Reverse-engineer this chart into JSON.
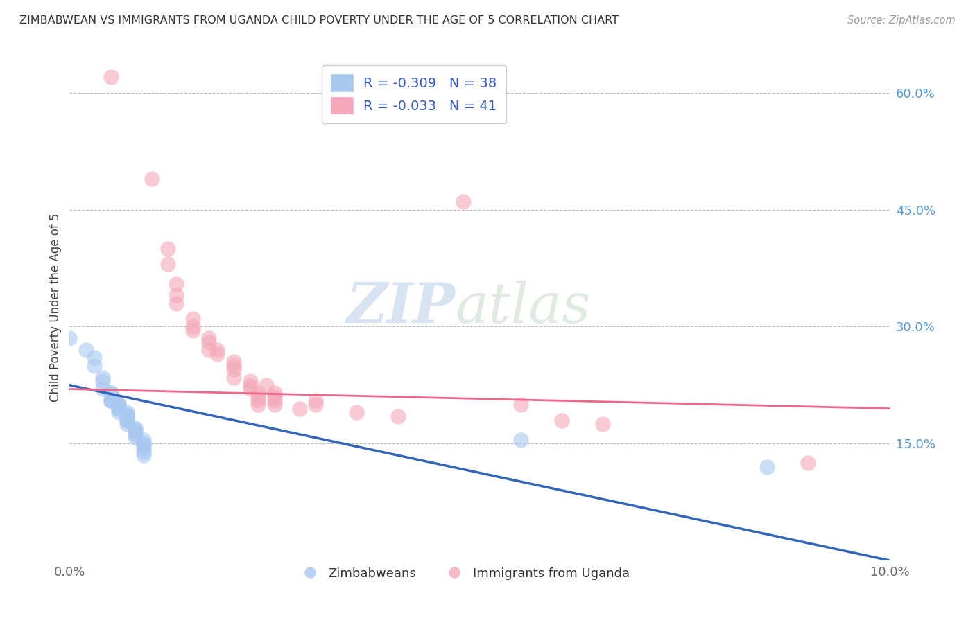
{
  "title": "ZIMBABWEAN VS IMMIGRANTS FROM UGANDA CHILD POVERTY UNDER THE AGE OF 5 CORRELATION CHART",
  "source": "Source: ZipAtlas.com",
  "ylabel": "Child Poverty Under the Age of 5",
  "xlim": [
    0.0,
    0.1
  ],
  "ylim": [
    0.0,
    0.65
  ],
  "legend_blue_label": "R = -0.309   N = 38",
  "legend_pink_label": "R = -0.033   N = 41",
  "legend_bottom_blue": "Zimbabweans",
  "legend_bottom_pink": "Immigrants from Uganda",
  "watermark_zip": "ZIP",
  "watermark_atlas": "atlas",
  "blue_color": "#A8C8F0",
  "pink_color": "#F4A8B8",
  "blue_line_color": "#3366BB",
  "pink_line_color": "#EE6688",
  "blue_scatter": [
    [
      0.0,
      0.285
    ],
    [
      0.002,
      0.27
    ],
    [
      0.003,
      0.26
    ],
    [
      0.003,
      0.25
    ],
    [
      0.004,
      0.235
    ],
    [
      0.004,
      0.23
    ],
    [
      0.004,
      0.22
    ],
    [
      0.005,
      0.215
    ],
    [
      0.005,
      0.215
    ],
    [
      0.005,
      0.205
    ],
    [
      0.005,
      0.205
    ],
    [
      0.005,
      0.205
    ],
    [
      0.006,
      0.2
    ],
    [
      0.006,
      0.2
    ],
    [
      0.006,
      0.2
    ],
    [
      0.006,
      0.195
    ],
    [
      0.006,
      0.195
    ],
    [
      0.006,
      0.19
    ],
    [
      0.007,
      0.19
    ],
    [
      0.007,
      0.188
    ],
    [
      0.007,
      0.185
    ],
    [
      0.007,
      0.185
    ],
    [
      0.007,
      0.18
    ],
    [
      0.007,
      0.18
    ],
    [
      0.007,
      0.175
    ],
    [
      0.008,
      0.17
    ],
    [
      0.008,
      0.168
    ],
    [
      0.008,
      0.165
    ],
    [
      0.008,
      0.162
    ],
    [
      0.008,
      0.158
    ],
    [
      0.009,
      0.155
    ],
    [
      0.009,
      0.15
    ],
    [
      0.009,
      0.148
    ],
    [
      0.009,
      0.145
    ],
    [
      0.009,
      0.14
    ],
    [
      0.009,
      0.135
    ],
    [
      0.055,
      0.155
    ],
    [
      0.085,
      0.12
    ]
  ],
  "pink_scatter": [
    [
      0.005,
      0.62
    ],
    [
      0.01,
      0.49
    ],
    [
      0.012,
      0.4
    ],
    [
      0.012,
      0.38
    ],
    [
      0.013,
      0.355
    ],
    [
      0.013,
      0.34
    ],
    [
      0.013,
      0.33
    ],
    [
      0.015,
      0.31
    ],
    [
      0.015,
      0.3
    ],
    [
      0.015,
      0.295
    ],
    [
      0.017,
      0.285
    ],
    [
      0.017,
      0.28
    ],
    [
      0.017,
      0.27
    ],
    [
      0.018,
      0.27
    ],
    [
      0.018,
      0.265
    ],
    [
      0.02,
      0.255
    ],
    [
      0.02,
      0.25
    ],
    [
      0.02,
      0.245
    ],
    [
      0.02,
      0.235
    ],
    [
      0.022,
      0.23
    ],
    [
      0.022,
      0.225
    ],
    [
      0.022,
      0.22
    ],
    [
      0.023,
      0.215
    ],
    [
      0.023,
      0.21
    ],
    [
      0.023,
      0.205
    ],
    [
      0.023,
      0.2
    ],
    [
      0.024,
      0.225
    ],
    [
      0.025,
      0.215
    ],
    [
      0.025,
      0.21
    ],
    [
      0.025,
      0.205
    ],
    [
      0.025,
      0.2
    ],
    [
      0.028,
      0.195
    ],
    [
      0.03,
      0.205
    ],
    [
      0.03,
      0.2
    ],
    [
      0.035,
      0.19
    ],
    [
      0.04,
      0.185
    ],
    [
      0.055,
      0.2
    ],
    [
      0.06,
      0.18
    ],
    [
      0.065,
      0.175
    ],
    [
      0.09,
      0.125
    ],
    [
      0.048,
      0.46
    ]
  ],
  "blue_line": [
    [
      0.0,
      0.225
    ],
    [
      0.1,
      0.0
    ]
  ],
  "pink_line": [
    [
      0.0,
      0.22
    ],
    [
      0.1,
      0.195
    ]
  ]
}
